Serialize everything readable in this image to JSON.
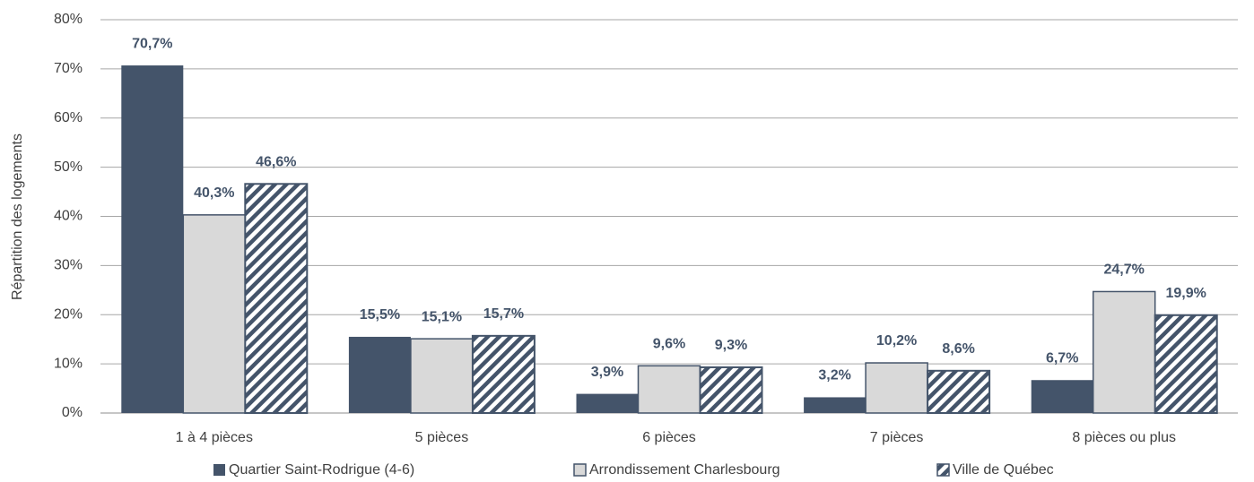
{
  "chart_data": {
    "type": "bar",
    "y_label": "Répartition des logements",
    "categories": [
      "1 à 4 pièces",
      "5 pièces",
      "6 pièces",
      "7 pièces",
      "8 pièces ou plus"
    ],
    "series": [
      {
        "name": "Quartier Saint-Rodrigue (4-6)",
        "color": "#44546a",
        "hatch": false,
        "values": [
          70.7,
          15.5,
          3.9,
          3.2,
          6.7
        ],
        "value_labels": [
          "70,7%",
          "15,5%",
          "3,9%",
          "3,2%",
          "6,7%"
        ]
      },
      {
        "name": "Arrondissement Charlesbourg",
        "color": "#d9d9d9",
        "hatch": false,
        "values": [
          40.3,
          15.1,
          9.6,
          10.2,
          24.7
        ],
        "value_labels": [
          "40,3%",
          "15,1%",
          "9,6%",
          "10,2%",
          "24,7%"
        ]
      },
      {
        "name": "Ville de Québec",
        "color": "#44546a",
        "hatch": true,
        "values": [
          46.6,
          15.7,
          9.3,
          8.6,
          19.9
        ],
        "value_labels": [
          "46,6%",
          "15,7%",
          "9,3%",
          "8,6%",
          "19,9%"
        ]
      }
    ],
    "ylim": [
      0,
      80
    ],
    "yticks": [
      {
        "value": 0,
        "label": "0%"
      },
      {
        "value": 10,
        "label": "10%"
      },
      {
        "value": 20,
        "label": "20%"
      },
      {
        "value": 30,
        "label": "30%"
      },
      {
        "value": 40,
        "label": "40%"
      },
      {
        "value": 50,
        "label": "50%"
      },
      {
        "value": 60,
        "label": "60%"
      },
      {
        "value": 70,
        "label": "70%"
      },
      {
        "value": 80,
        "label": "80%"
      }
    ],
    "grid": true
  }
}
